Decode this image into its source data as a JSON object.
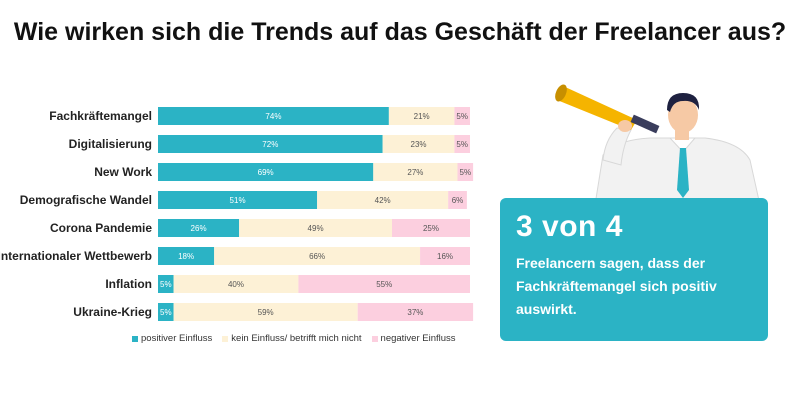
{
  "title": "Wie wirken sich die Trends auf das Geschäft der Freelancer aus?",
  "colors": {
    "positive": "#2bb3c5",
    "neutral": "#fdf1d6",
    "negative": "#fccfdf",
    "card": "#2bb3c5"
  },
  "chart_data": {
    "type": "bar",
    "orientation": "horizontal",
    "stacked": true,
    "percent": true,
    "categories": [
      "Fachkräftemangel",
      "Digitalisierung",
      "New Work",
      "Demografische Wandel",
      "Corona Pandemie",
      "Internationaler Wettbewerb",
      "Inflation",
      "Ukraine-Krieg"
    ],
    "series": [
      {
        "name": "positiver Einfluss",
        "values": [
          74,
          72,
          69,
          51,
          26,
          18,
          5,
          5
        ]
      },
      {
        "name": "kein Einfluss/ betrifft mich nicht",
        "values": [
          21,
          23,
          27,
          42,
          49,
          66,
          40,
          59
        ]
      },
      {
        "name": "negativer Einfluss",
        "values": [
          5,
          5,
          5,
          6,
          25,
          16,
          55,
          37
        ]
      }
    ],
    "legend_position": "bottom"
  },
  "callout": {
    "headline": "3 von 4",
    "text": "Freelancern sagen, dass der Fachkräftemangel sich positiv auswirkt."
  },
  "illustration": "man-with-megaphone"
}
